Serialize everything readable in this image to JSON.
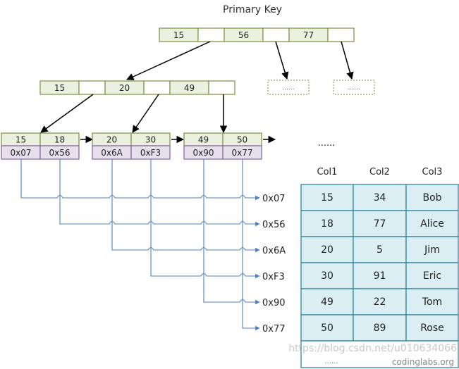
{
  "title": "Primary Key",
  "colors": {
    "key_fill": "#ebf1de",
    "key_stroke": "#77933c",
    "addr_fill": "#e6e0ec",
    "addr_stroke": "#8064a2",
    "pointer_line": "#4f81bd",
    "table_fill": "#dbeef4",
    "table_stroke": "#31859c"
  },
  "root_node": {
    "keys": [
      "15",
      "56",
      "77"
    ]
  },
  "internal_node": {
    "keys": [
      "15",
      "20",
      "49"
    ]
  },
  "placeholder_nodes": [
    "......",
    "......"
  ],
  "leaves": [
    {
      "keys": [
        "15",
        "18"
      ],
      "addrs": [
        "0x07",
        "0x56"
      ]
    },
    {
      "keys": [
        "20",
        "30"
      ],
      "addrs": [
        "0x6A",
        "0xF3"
      ]
    },
    {
      "keys": [
        "49",
        "50"
      ],
      "addrs": [
        "0x90",
        "0x77"
      ]
    }
  ],
  "leaf_more": "......",
  "pointer_labels": [
    "0x07",
    "0x56",
    "0x6A",
    "0xF3",
    "0x90",
    "0x77"
  ],
  "table": {
    "headers": [
      "Col1",
      "Col2",
      "Col3"
    ],
    "rows": [
      [
        "15",
        "34",
        "Bob"
      ],
      [
        "18",
        "77",
        "Alice"
      ],
      [
        "20",
        "5",
        "Jim"
      ],
      [
        "30",
        "91",
        "Eric"
      ],
      [
        "49",
        "22",
        "Tom"
      ],
      [
        "50",
        "89",
        "Rose"
      ]
    ],
    "more": "......"
  },
  "watermark": "https://blog.csdn.net/u010634066",
  "credit": "codinglabs.org"
}
